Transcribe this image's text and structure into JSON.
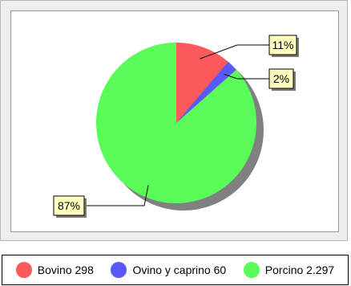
{
  "chart_data": {
    "type": "pie",
    "slices": [
      {
        "label": "Bovino",
        "value": 298,
        "value_label": "298",
        "percent_label": "11%",
        "color": "#fc5a5a"
      },
      {
        "label": "Ovino y caprino",
        "value": 60,
        "value_label": "60",
        "percent_label": "2%",
        "color": "#5a5afc"
      },
      {
        "label": "Porcino",
        "value": 2297,
        "value_label": "2.297",
        "percent_label": "87%",
        "color": "#5afc5a"
      }
    ],
    "legend_position": "bottom",
    "shadow_color": "#808080",
    "label_box_color": "#ffffc0"
  }
}
